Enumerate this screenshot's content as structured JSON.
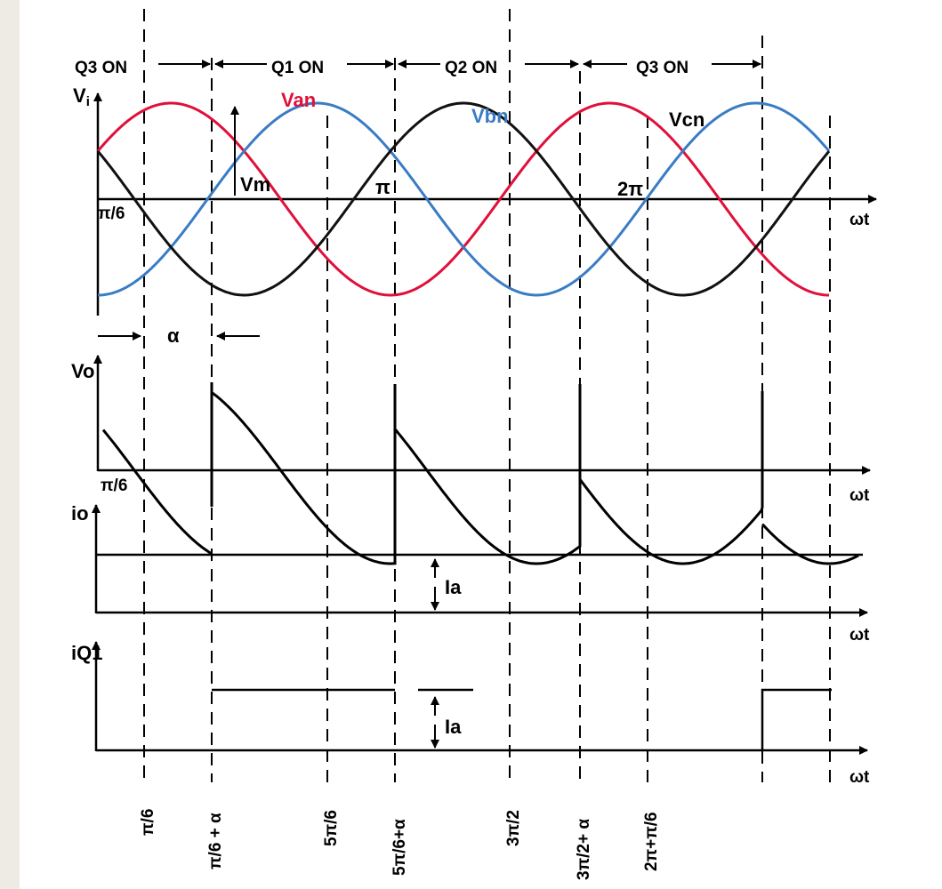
{
  "colors": {
    "van": "#e0103a",
    "vbn": "#3a7cc4",
    "vcn": "#111111",
    "axis": "#000000"
  },
  "labels": {
    "q3_on_left": "Q3 ON",
    "q1_on": "Q1 ON",
    "q2_on": "Q2 ON",
    "q3_on_right": "Q3 ON",
    "vi": "Vi",
    "vi_letter": "V",
    "vi_sub": "i",
    "van": "Van",
    "vbn": "Vbn",
    "vcn": "Vcn",
    "vm": "Vm",
    "pi": "π",
    "two_pi": "2π",
    "pi_over_6_top": "π/6",
    "wt1": "ωt",
    "alpha": "α",
    "vo": "Vo",
    "pi_over_6_mid": "π/6",
    "wt2": "ωt",
    "io": "io",
    "ia_1": "Ia",
    "wt3": "ωt",
    "iq1": "iQ1",
    "ia_2": "Ia",
    "wt4": "ωt"
  },
  "tick_labels": [
    "π/6",
    "π/6 + α",
    "5π/6",
    "5π/6+α",
    "3π/2",
    "3π/2+ α",
    "2π+π/6"
  ]
}
